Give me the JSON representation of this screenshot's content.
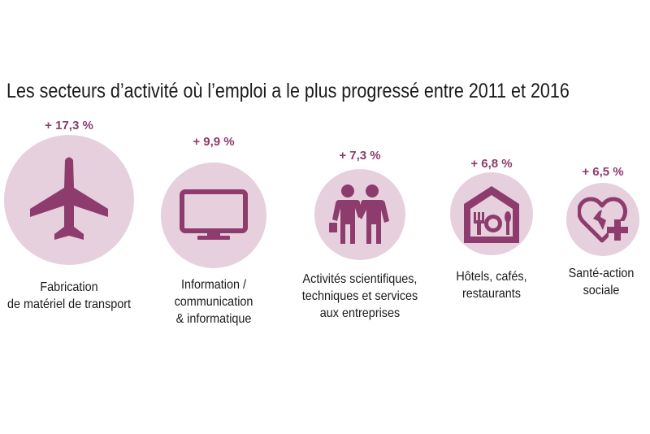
{
  "title": "Les secteurs d’activité où l’emploi a le plus progressé entre 2011 et 2016",
  "colors": {
    "circle": "#e6d0de",
    "icon": "#8e3b6e",
    "value": "#8e3b6e"
  },
  "chart_data": {
    "type": "bar",
    "title": "Les secteurs d’activité où l’emploi a le plus progressé entre 2011 et 2016",
    "categories": [
      "Fabrication de matériel de transport",
      "Information / communication & informatique",
      "Activités scientifiques, techniques et services aux entreprises",
      "Hôtels, cafés, restaurants",
      "Santé-action sociale"
    ],
    "values": [
      17.3,
      9.9,
      7.3,
      6.8,
      6.5
    ],
    "unit": "%"
  },
  "sectors": [
    {
      "value_label": "+ 17,3 %",
      "label_lines": [
        "Fabrication",
        "de matériel de transport"
      ],
      "icon": "airplane-icon"
    },
    {
      "value_label": "+ 9,9 %",
      "label_lines": [
        "Information /",
        "communication",
        "& informatique"
      ],
      "icon": "monitor-icon"
    },
    {
      "value_label": "+ 7,3 %",
      "label_lines": [
        "Activités scientifiques,",
        "techniques et services",
        "aux entreprises"
      ],
      "icon": "business-people-icon"
    },
    {
      "value_label": "+ 6,8 %",
      "label_lines": [
        "Hôtels, cafés,",
        "restaurants"
      ],
      "icon": "restaurant-icon"
    },
    {
      "value_label": "+ 6,5 %",
      "label_lines": [
        "Santé-action",
        "sociale"
      ],
      "icon": "heart-plus-icon"
    }
  ]
}
